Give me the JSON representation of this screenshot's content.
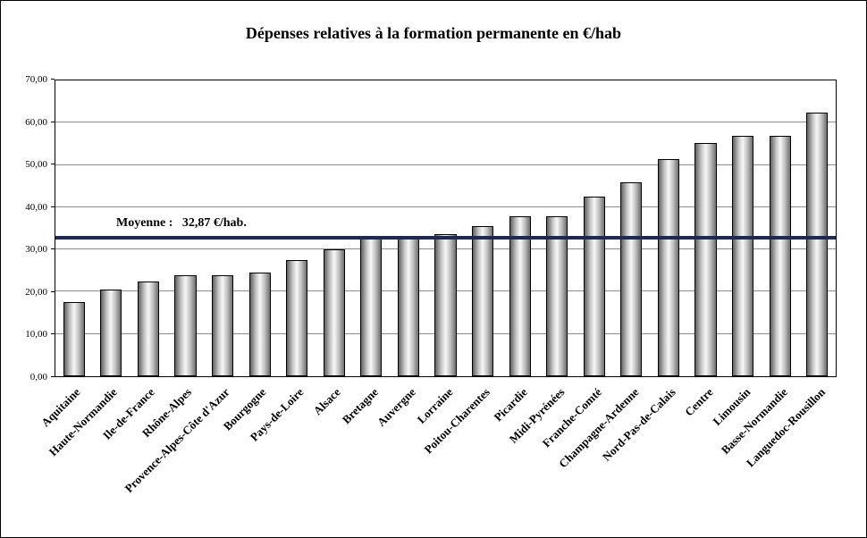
{
  "chart_data": {
    "type": "bar",
    "title": "Dépenses relatives à la formation permanente en €/hab",
    "categories": [
      "Aquitaine",
      "Haute-Normandie",
      "Ile-de-France",
      "Rhône-Alpes",
      "Provence-Alpes-Côte d'Azur",
      "Bourgogne",
      "Pays-de-Loire",
      "Alsace",
      "Bretagne",
      "Auvergne",
      "Lorraine",
      "Poitou-Charentes",
      "Picardie",
      "Midi-Pyrénées",
      "Franche-Comté",
      "Champagne-Ardenne",
      "Nord-Pas-de-Calais",
      "Centre",
      "Limousin",
      "Basse-Normandie",
      "Languedoc-Rousillon"
    ],
    "values": [
      17.6,
      20.6,
      22.4,
      24.0,
      24.0,
      24.6,
      27.4,
      30.1,
      32.5,
      33.0,
      33.7,
      35.6,
      37.9,
      37.9,
      42.5,
      45.8,
      51.4,
      55.3,
      56.8,
      56.8,
      62.3
    ],
    "xlabel": "",
    "ylabel": "",
    "ylim": [
      0,
      70
    ],
    "ytick_step": 10,
    "ytick_labels": [
      "0,00",
      "10,00",
      "20,00",
      "30,00",
      "40,00",
      "50,00",
      "60,00",
      "70,00"
    ],
    "grid": true,
    "legend": "none",
    "average_line": {
      "value": 32.87,
      "label": "Moyenne :   32,87 €/hab.",
      "color": "#1f2a52"
    }
  }
}
